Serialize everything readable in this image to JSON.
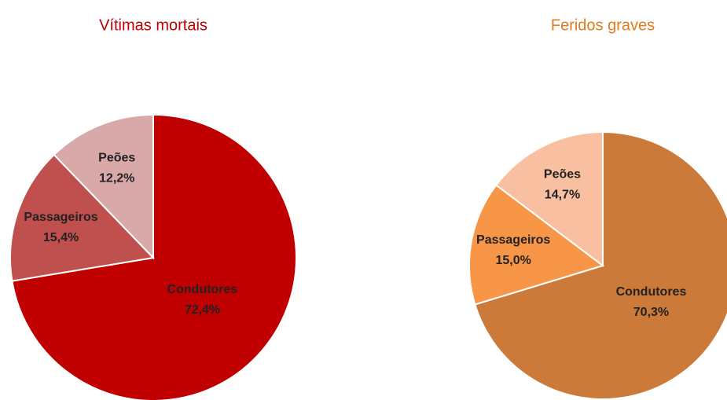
{
  "chart_data": [
    {
      "type": "pie",
      "title": "Vítimas mortais",
      "title_color": "#c00000",
      "categories": [
        "Condutores",
        "Passageiros",
        "Peões"
      ],
      "values": [
        72.4,
        15.4,
        12.2
      ],
      "value_labels": [
        "72,4%",
        "15,4%",
        "12,2%"
      ],
      "colors": [
        "#c00000",
        "#c0504d",
        "#d9a9a9"
      ]
    },
    {
      "type": "pie",
      "title": "Feridos graves",
      "title_color": "#e07b20",
      "categories": [
        "Condutores",
        "Passageiros",
        "Peões"
      ],
      "values": [
        70.3,
        15.0,
        14.7
      ],
      "value_labels": [
        "70,3%",
        "15,0%",
        "14,7%"
      ],
      "colors": [
        "#cc7a3a",
        "#f79646",
        "#f8c0a0"
      ]
    }
  ]
}
